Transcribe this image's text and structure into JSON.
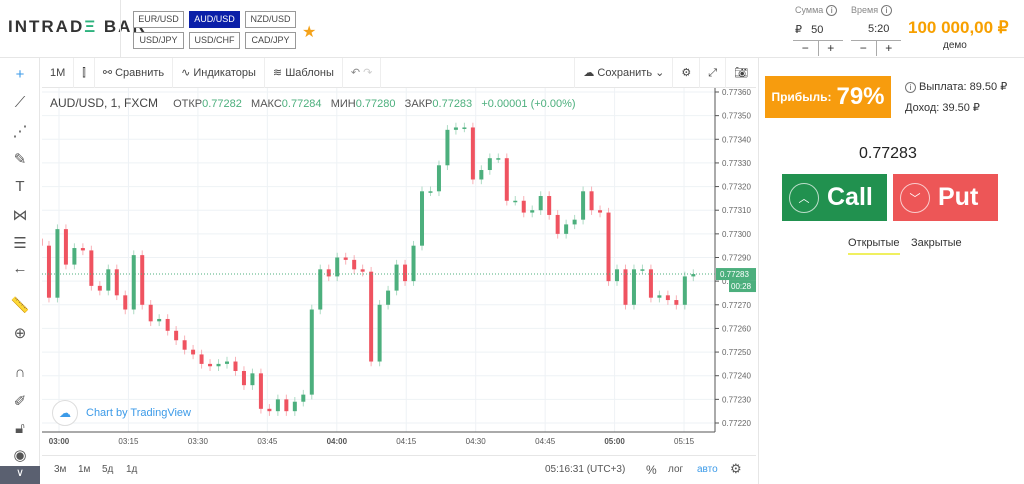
{
  "header": {
    "logo": "INTRADE BAR",
    "pairs": [
      "EUR/USD",
      "AUD/USD",
      "NZD/USD",
      "USD/JPY",
      "USD/CHF",
      "CAD/JPY"
    ],
    "active_pair": "AUD/USD",
    "amount_label": "Сумма",
    "amount_currency": "₽",
    "amount_value": "50",
    "time_label": "Время",
    "time_value": "5:20",
    "minus": "−",
    "plus": "+",
    "balance": "100 000,00 ₽",
    "account_type": "демо"
  },
  "toolbar": {
    "interval": "1M",
    "compare": "Сравнить",
    "indicators": "Индикаторы",
    "templates": "Шаблоны",
    "save": "Сохранить"
  },
  "legend": {
    "symbol": "AUD/USD, 1, FXCM",
    "open_label": "ОТКР",
    "open": "0.77282",
    "high_label": "МАКС",
    "high": "0.77284",
    "low_label": "МИН",
    "low": "0.77280",
    "close_label": "ЗАКР",
    "close": "0.77283",
    "change": "+0.00001 (+0.00%)"
  },
  "watermark": "Chart by TradingView",
  "bottom": {
    "ranges": [
      "3м",
      "1м",
      "5д",
      "1д"
    ],
    "clock": "05:16:31 (UTC+3)",
    "percent": "%",
    "log": "лог",
    "auto": "авто"
  },
  "panel": {
    "profit_label": "Прибыль:",
    "profit_value": "79%",
    "payout": "Выплата: 89.50 ₽",
    "income": "Доход: 39.50 ₽",
    "price": "0.77283",
    "call": "Call",
    "put": "Put",
    "tab_open": "Открытые",
    "tab_closed": "Закрытые"
  },
  "colors": {
    "up": "#4caf7d",
    "down": "#ef5360",
    "call": "#21914f",
    "put": "#ed5657",
    "accent": "#f79c0e"
  },
  "chart_data": {
    "type": "candlestick",
    "ylim": [
      0.7722,
      0.7736
    ],
    "y_ticks": [
      "0.77360",
      "0.77350",
      "0.77340",
      "0.77330",
      "0.77320",
      "0.77310",
      "0.77300",
      "0.77290",
      "0.77280",
      "0.77270",
      "0.77260",
      "0.77250",
      "0.77240",
      "0.77230",
      "0.77220"
    ],
    "x_ticks": [
      "03:00",
      "03:15",
      "03:30",
      "03:45",
      "04:00",
      "04:15",
      "04:30",
      "04:45",
      "05:00",
      "05:15"
    ],
    "x_range": [
      "02:56",
      "05:17"
    ],
    "last_price": "0.77283",
    "countdown": "00:28",
    "closes": [
      0.77295,
      0.77273,
      0.77302,
      0.77287,
      0.77294,
      0.77293,
      0.77278,
      0.77276,
      0.77285,
      0.77274,
      0.77268,
      0.77291,
      0.7727,
      0.77263,
      0.77264,
      0.77259,
      0.77255,
      0.77251,
      0.77249,
      0.77245,
      0.77244,
      0.77245,
      0.77246,
      0.77242,
      0.77236,
      0.77241,
      0.77226,
      0.77225,
      0.7723,
      0.77225,
      0.77229,
      0.77232,
      0.77268,
      0.77285,
      0.77282,
      0.7729,
      0.77289,
      0.77285,
      0.77284,
      0.77246,
      0.7727,
      0.77276,
      0.77287,
      0.7728,
      0.77295,
      0.77318,
      0.77318,
      0.77329,
      0.77344,
      0.77345,
      0.77345,
      0.77323,
      0.77327,
      0.77332,
      0.77332,
      0.77314,
      0.77314,
      0.77309,
      0.7731,
      0.77316,
      0.77308,
      0.773,
      0.77304,
      0.77306,
      0.77318,
      0.7731,
      0.77309,
      0.7728,
      0.77285,
      0.7727,
      0.77285,
      0.77285,
      0.77273,
      0.77274,
      0.77272,
      0.7727,
      0.77282,
      0.77283
    ]
  }
}
